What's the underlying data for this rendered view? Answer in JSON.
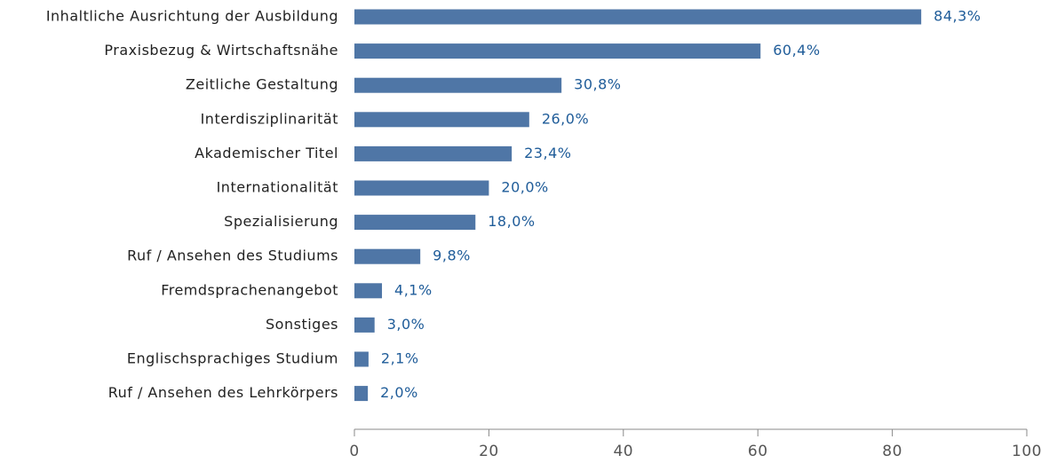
{
  "chart_data": {
    "type": "bar",
    "orientation": "horizontal",
    "categories": [
      "Inhaltliche Ausrichtung der Ausbildung",
      "Praxisbezug & Wirtschaftsnähe",
      "Zeitliche Gestaltung",
      "Interdisziplinarität",
      "Akademischer Titel",
      "Internationalität",
      "Spezialisierung",
      "Ruf / Ansehen des Studiums",
      "Fremdsprachenangebot",
      "Sonstiges",
      "Englischsprachiges Studium",
      "Ruf / Ansehen des Lehrkörpers"
    ],
    "values": [
      84.3,
      60.4,
      30.8,
      26.0,
      23.4,
      20.0,
      18.0,
      9.8,
      4.1,
      3.0,
      2.1,
      2.0
    ],
    "value_labels": [
      "84,3%",
      "60,4%",
      "30,8%",
      "26,0%",
      "23,4%",
      "20,0%",
      "18,0%",
      "9,8%",
      "4,1%",
      "3,0%",
      "2,1%",
      "2,0%"
    ],
    "color": "#4f76a6",
    "xlim": [
      0,
      100
    ],
    "xticks": [
      0,
      20,
      40,
      60,
      80,
      100
    ]
  }
}
